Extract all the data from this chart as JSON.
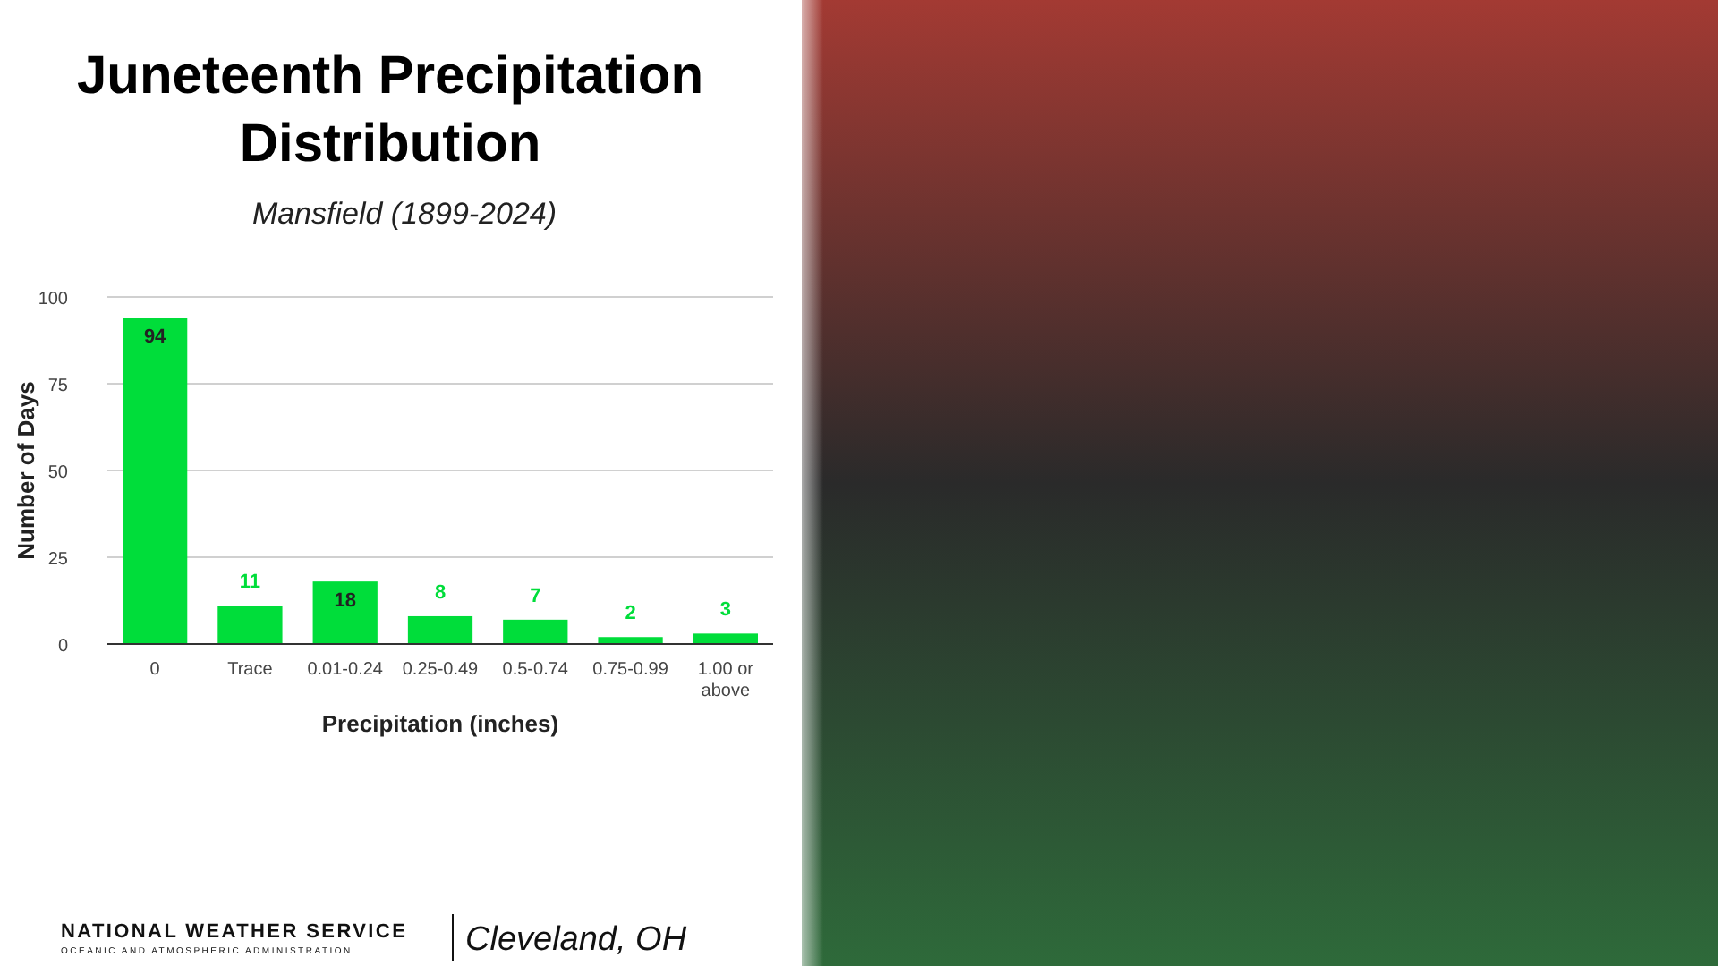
{
  "chart_data": {
    "type": "bar",
    "title": "Juneteenth Precipitation Distribution",
    "subtitle": "Mansfield (1899-2024)",
    "xlabel": "Precipitation (inches)",
    "ylabel": "Number of Days",
    "categories": [
      "0",
      "Trace",
      "0.01-0.24",
      "0.25-0.49",
      "0.5-0.74",
      "0.75-0.99",
      "1.00 or above"
    ],
    "values": [
      94,
      11,
      18,
      8,
      7,
      2,
      3
    ],
    "color": "#00dd3a",
    "ylim": [
      0,
      100
    ],
    "yticks": [
      0,
      25,
      50,
      75,
      100
    ],
    "grid": "y",
    "data_labels": true,
    "annotations": [
      "NATIONAL WEATHER SERVICE",
      "OCEANIC AND ATMOSPHERIC ADMINISTRATION",
      "Cleveland, OH"
    ]
  }
}
